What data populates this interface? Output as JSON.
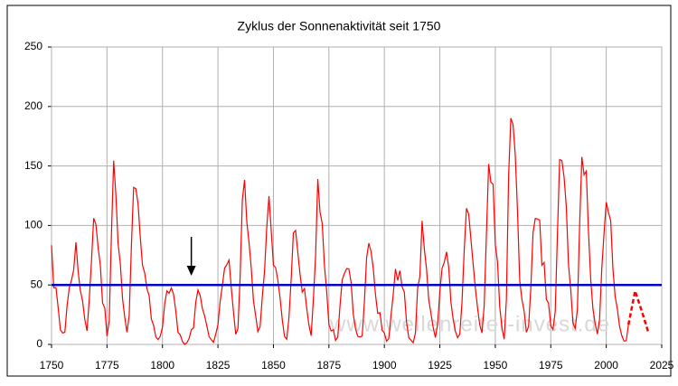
{
  "chart_data": {
    "type": "line",
    "title": "Zyklus der Sonnenaktivität seit 1750",
    "watermark": "www.wellenreiter-invest.de",
    "xlim": [
      1750,
      2025
    ],
    "xticks": [
      1750,
      1775,
      1800,
      1825,
      1850,
      1875,
      1900,
      1925,
      1950,
      1975,
      2000,
      2025
    ],
    "ylim": [
      0,
      250
    ],
    "yticks": [
      0,
      50,
      100,
      150,
      200,
      250
    ],
    "grid": true,
    "reference_line": {
      "value": 50,
      "color": "#0000cc"
    },
    "arrow_x": 1813,
    "series": [
      {
        "color": "#ff0000",
        "dashed": false,
        "x": [
          1750,
          1751,
          1752,
          1753,
          1754,
          1755,
          1756,
          1757,
          1758,
          1759,
          1760,
          1761,
          1762,
          1763,
          1764,
          1765,
          1766,
          1767,
          1768,
          1769,
          1770,
          1771,
          1772,
          1773,
          1774,
          1775,
          1776,
          1777,
          1778,
          1779,
          1780,
          1781,
          1782,
          1783,
          1784,
          1785,
          1786,
          1787,
          1788,
          1789,
          1790,
          1791,
          1792,
          1793,
          1794,
          1795,
          1796,
          1797,
          1798,
          1799,
          1800,
          1801,
          1802,
          1803,
          1804,
          1805,
          1806,
          1807,
          1808,
          1809,
          1810,
          1811,
          1812,
          1813,
          1814,
          1815,
          1816,
          1817,
          1818,
          1819,
          1820,
          1821,
          1822,
          1823,
          1824,
          1825,
          1826,
          1827,
          1828,
          1829,
          1830,
          1831,
          1832,
          1833,
          1834,
          1835,
          1836,
          1837,
          1838,
          1839,
          1840,
          1841,
          1842,
          1843,
          1844,
          1845,
          1846,
          1847,
          1848,
          1849,
          1850,
          1851,
          1852,
          1853,
          1854,
          1855,
          1856,
          1857,
          1858,
          1859,
          1860,
          1861,
          1862,
          1863,
          1864,
          1865,
          1866,
          1867,
          1868,
          1869,
          1870,
          1871,
          1872,
          1873,
          1874,
          1875,
          1876,
          1877,
          1878,
          1879,
          1880,
          1881,
          1882,
          1883,
          1884,
          1885,
          1886,
          1887,
          1888,
          1889,
          1890,
          1891,
          1892,
          1893,
          1894,
          1895,
          1896,
          1897,
          1898,
          1899,
          1900,
          1901,
          1902,
          1903,
          1904,
          1905,
          1906,
          1907,
          1908,
          1909,
          1910,
          1911,
          1912,
          1913,
          1914,
          1915,
          1916,
          1917,
          1918,
          1919,
          1920,
          1921,
          1922,
          1923,
          1924,
          1925,
          1926,
          1927,
          1928,
          1929,
          1930,
          1931,
          1932,
          1933,
          1934,
          1935,
          1936,
          1937,
          1938,
          1939,
          1940,
          1941,
          1942,
          1943,
          1944,
          1945,
          1946,
          1947,
          1948,
          1949,
          1950,
          1951,
          1952,
          1953,
          1954,
          1955,
          1956,
          1957,
          1958,
          1959,
          1960,
          1961,
          1962,
          1963,
          1964,
          1965,
          1966,
          1967,
          1968,
          1969,
          1970,
          1971,
          1972,
          1973,
          1974,
          1975,
          1976,
          1977,
          1978,
          1979,
          1980,
          1981,
          1982,
          1983,
          1984,
          1985,
          1986,
          1987,
          1988,
          1989,
          1990,
          1991,
          1992,
          1993,
          1994,
          1995,
          1996,
          1997,
          1998,
          1999,
          2000,
          2001,
          2002,
          2003,
          2004,
          2005,
          2006,
          2007,
          2008,
          2009,
          2010
        ],
        "values": [
          83.4,
          47.7,
          47.8,
          30.7,
          12.2,
          9.6,
          10.2,
          32.4,
          47.6,
          54.0,
          62.9,
          85.9,
          61.2,
          45.1,
          36.4,
          20.9,
          11.4,
          37.8,
          69.8,
          106.1,
          100.8,
          81.6,
          66.5,
          34.8,
          30.6,
          7.0,
          19.8,
          92.5,
          154.4,
          125.9,
          84.8,
          68.1,
          38.5,
          22.8,
          10.2,
          24.1,
          82.9,
          132.0,
          130.9,
          118.1,
          89.9,
          66.6,
          60.0,
          46.9,
          41.0,
          21.3,
          16.0,
          6.4,
          4.1,
          6.8,
          14.5,
          34.0,
          45.0,
          43.1,
          47.5,
          42.2,
          28.1,
          10.1,
          8.1,
          2.5,
          0.0,
          1.4,
          5.0,
          12.2,
          13.9,
          35.4,
          45.8,
          41.1,
          30.1,
          23.9,
          15.6,
          6.6,
          4.0,
          1.8,
          8.5,
          16.6,
          36.3,
          49.6,
          64.2,
          67.0,
          70.9,
          47.8,
          27.5,
          8.5,
          13.2,
          56.9,
          121.5,
          138.3,
          103.2,
          85.7,
          64.6,
          36.7,
          24.2,
          10.7,
          15.0,
          40.1,
          61.5,
          98.5,
          124.7,
          96.3,
          66.6,
          64.5,
          54.1,
          39.0,
          20.6,
          6.7,
          4.3,
          22.7,
          54.8,
          93.8,
          95.8,
          77.2,
          59.1,
          44.0,
          47.0,
          30.5,
          16.3,
          7.3,
          37.6,
          74.0,
          139.0,
          111.2,
          101.6,
          66.2,
          44.7,
          17.0,
          11.3,
          12.4,
          3.4,
          6.0,
          32.3,
          54.3,
          59.7,
          63.7,
          63.5,
          52.2,
          25.4,
          13.1,
          6.8,
          6.3,
          7.1,
          35.6,
          73.0,
          85.1,
          78.0,
          64.0,
          41.8,
          26.2,
          26.7,
          12.1,
          9.5,
          2.7,
          5.0,
          24.4,
          42.0,
          63.5,
          53.8,
          62.0,
          48.5,
          43.9,
          18.6,
          5.7,
          3.6,
          1.4,
          9.6,
          47.4,
          57.1,
          103.9,
          80.6,
          63.6,
          37.6,
          26.1,
          14.2,
          5.8,
          16.7,
          44.3,
          63.9,
          69.0,
          77.8,
          64.9,
          35.7,
          21.2,
          11.1,
          5.7,
          8.7,
          36.1,
          79.7,
          114.4,
          109.6,
          88.8,
          67.8,
          47.5,
          30.6,
          16.3,
          9.6,
          33.2,
          92.6,
          151.6,
          136.3,
          134.7,
          83.9,
          69.4,
          31.5,
          13.9,
          4.4,
          38.0,
          141.7,
          190.2,
          184.8,
          159.0,
          112.3,
          53.9,
          37.6,
          27.9,
          10.2,
          15.1,
          47.0,
          93.8,
          105.9,
          105.5,
          104.5,
          66.6,
          68.9,
          38.0,
          34.5,
          15.5,
          12.6,
          27.5,
          92.5,
          155.4,
          154.6,
          140.4,
          115.9,
          66.6,
          45.9,
          17.9,
          13.4,
          29.4,
          100.2,
          157.6,
          142.6,
          145.7,
          94.3,
          54.6,
          29.9,
          17.5,
          8.6,
          21.5,
          64.3,
          93.3,
          119.6,
          111.0,
          104.0,
          63.7,
          40.4,
          29.8,
          15.2,
          7.5,
          2.9,
          3.1,
          16.5
        ]
      },
      {
        "color": "#ff0000",
        "dashed": true,
        "x": [
          2010,
          2013,
          2016,
          2019
        ],
        "values": [
          16.5,
          45,
          28,
          10
        ]
      }
    ]
  }
}
